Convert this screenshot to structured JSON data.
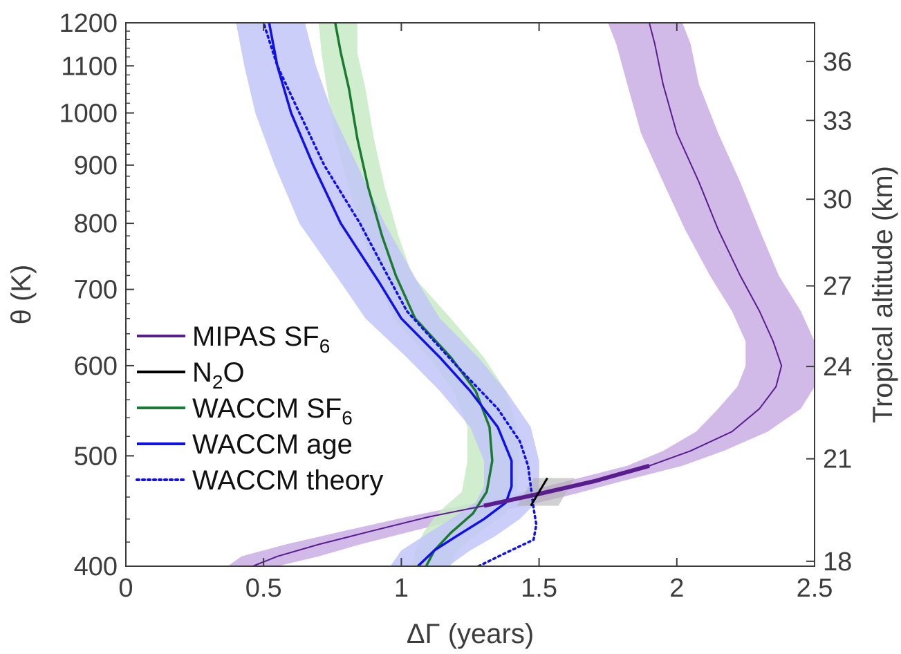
{
  "chart_data": {
    "type": "line",
    "xlabel": "ΔΓ (years)",
    "ylabel_left": "θ (K)",
    "ylabel_right": "Tropical altitude (km)",
    "xlim": [
      0,
      2.5
    ],
    "ylim": [
      400,
      1200
    ],
    "y_scale": "log",
    "x_ticks": [
      "0",
      "0.5",
      "1",
      "1.5",
      "2",
      "2.5"
    ],
    "y_ticks": [
      "400",
      "500",
      "600",
      "700",
      "800",
      "900",
      "1000",
      "1100",
      "1200"
    ],
    "y_ticks_right": [
      "18",
      "21",
      "24",
      "27",
      "30",
      "33",
      "36"
    ],
    "grid": false,
    "legend_position": "lower-left",
    "colors": {
      "mipas": "#5a1d8e",
      "mipas_band": "#c9aee3",
      "n2o": "#000000",
      "n2o_band": "#b0b0b0",
      "waccm_sf6": "#1a7a32",
      "waccm_sf6_band": "#c8ebc4",
      "waccm_age": "#1010e8",
      "waccm_age_band": "#c2c6f7",
      "waccm_theory": "#1010e8",
      "axis": "#3c3c3c"
    },
    "series": [
      {
        "name": "MIPAS SF6",
        "style": "solid",
        "points": [
          [
            0.46,
            400
          ],
          [
            0.55,
            408
          ],
          [
            0.7,
            418
          ],
          [
            0.9,
            430
          ],
          [
            1.1,
            442
          ],
          [
            1.3,
            452
          ],
          [
            1.5,
            463
          ],
          [
            1.7,
            475
          ],
          [
            1.9,
            490
          ],
          [
            2.05,
            505
          ],
          [
            2.2,
            525
          ],
          [
            2.3,
            550
          ],
          [
            2.36,
            575
          ],
          [
            2.38,
            600
          ],
          [
            2.35,
            630
          ],
          [
            2.3,
            670
          ],
          [
            2.23,
            720
          ],
          [
            2.15,
            790
          ],
          [
            2.08,
            870
          ],
          [
            2.0,
            960
          ],
          [
            1.95,
            1060
          ],
          [
            1.92,
            1150
          ],
          [
            1.9,
            1200
          ]
        ],
        "band": [
          [
            0.37,
            0.55
          ],
          [
            0.42,
            0.7
          ],
          [
            0.58,
            0.85
          ],
          [
            0.8,
            1.05
          ],
          [
            1.02,
            1.25
          ],
          [
            1.22,
            1.45
          ],
          [
            1.42,
            1.63
          ],
          [
            1.6,
            1.8
          ],
          [
            1.82,
            2.02
          ],
          [
            1.95,
            2.17
          ],
          [
            2.07,
            2.33
          ],
          [
            2.15,
            2.45
          ],
          [
            2.22,
            2.5
          ],
          [
            2.25,
            2.5
          ],
          [
            2.25,
            2.5
          ],
          [
            2.2,
            2.45
          ],
          [
            2.12,
            2.37
          ],
          [
            2.03,
            2.3
          ],
          [
            1.95,
            2.23
          ],
          [
            1.87,
            2.15
          ],
          [
            1.82,
            2.08
          ],
          [
            1.78,
            2.05
          ],
          [
            1.75,
            2.02
          ]
        ],
        "bold_segment": [
          1.2,
          1.9
        ]
      },
      {
        "name": "N2O",
        "style": "solid",
        "points": [
          [
            1.47,
            452
          ],
          [
            1.53,
            478
          ]
        ],
        "band_points": [
          [
            1.42,
            452
          ],
          [
            1.57,
            452
          ],
          [
            1.63,
            478
          ],
          [
            1.48,
            478
          ]
        ]
      },
      {
        "name": "WACCM SF6",
        "style": "solid",
        "points": [
          [
            1.09,
            400
          ],
          [
            1.12,
            413
          ],
          [
            1.18,
            428
          ],
          [
            1.26,
            445
          ],
          [
            1.31,
            465
          ],
          [
            1.33,
            495
          ],
          [
            1.32,
            530
          ],
          [
            1.27,
            570
          ],
          [
            1.18,
            610
          ],
          [
            1.05,
            660
          ],
          [
            0.98,
            720
          ],
          [
            0.93,
            780
          ],
          [
            0.88,
            860
          ],
          [
            0.84,
            950
          ],
          [
            0.81,
            1050
          ],
          [
            0.78,
            1130
          ],
          [
            0.76,
            1200
          ]
        ],
        "band": [
          [
            1.04,
            1.18
          ],
          [
            1.05,
            1.2
          ],
          [
            1.08,
            1.28
          ],
          [
            1.13,
            1.38
          ],
          [
            1.22,
            1.42
          ],
          [
            1.24,
            1.43
          ],
          [
            1.24,
            1.42
          ],
          [
            1.19,
            1.38
          ],
          [
            1.1,
            1.3
          ],
          [
            0.97,
            1.18
          ],
          [
            0.91,
            1.04
          ],
          [
            0.86,
            0.99
          ],
          [
            0.81,
            0.94
          ],
          [
            0.76,
            0.9
          ],
          [
            0.73,
            0.87
          ],
          [
            0.71,
            0.84
          ],
          [
            0.7,
            0.84
          ]
        ]
      },
      {
        "name": "WACCM age",
        "style": "solid",
        "points": [
          [
            1.06,
            400
          ],
          [
            1.12,
            413
          ],
          [
            1.2,
            425
          ],
          [
            1.3,
            440
          ],
          [
            1.38,
            455
          ],
          [
            1.4,
            470
          ],
          [
            1.4,
            495
          ],
          [
            1.35,
            530
          ],
          [
            1.25,
            570
          ],
          [
            1.14,
            610
          ],
          [
            1.0,
            660
          ],
          [
            0.92,
            710
          ],
          [
            0.78,
            800
          ],
          [
            0.68,
            900
          ],
          [
            0.6,
            1000
          ],
          [
            0.55,
            1100
          ],
          [
            0.52,
            1200
          ]
        ],
        "band": [
          [
            0.96,
            1.17
          ],
          [
            1.0,
            1.25
          ],
          [
            1.08,
            1.34
          ],
          [
            1.18,
            1.43
          ],
          [
            1.27,
            1.49
          ],
          [
            1.3,
            1.5
          ],
          [
            1.3,
            1.5
          ],
          [
            1.25,
            1.47
          ],
          [
            1.14,
            1.38
          ],
          [
            1.02,
            1.28
          ],
          [
            0.87,
            1.14
          ],
          [
            0.78,
            1.06
          ],
          [
            0.63,
            0.94
          ],
          [
            0.54,
            0.84
          ],
          [
            0.47,
            0.75
          ],
          [
            0.43,
            0.69
          ],
          [
            0.4,
            0.65
          ]
        ]
      },
      {
        "name": "WACCM theory",
        "style": "dotted",
        "points": [
          [
            1.28,
            400
          ],
          [
            1.38,
            411
          ],
          [
            1.48,
            422
          ],
          [
            1.49,
            435
          ],
          [
            1.48,
            450
          ],
          [
            1.47,
            470
          ],
          [
            1.46,
            490
          ],
          [
            1.43,
            515
          ],
          [
            1.35,
            550
          ],
          [
            1.2,
            600
          ],
          [
            1.02,
            670
          ],
          [
            0.95,
            720
          ],
          [
            0.85,
            800
          ],
          [
            0.72,
            900
          ],
          [
            0.63,
            1000
          ],
          [
            0.55,
            1100
          ],
          [
            0.5,
            1200
          ]
        ]
      }
    ],
    "legend_labels": [
      {
        "main": "MIPAS SF",
        "sub": "6",
        "tail": ""
      },
      {
        "main": "N",
        "sub": "2",
        "tail": "O"
      },
      {
        "main": "WACCM SF",
        "sub": "6",
        "tail": ""
      },
      {
        "main": "WACCM age",
        "sub": "",
        "tail": ""
      },
      {
        "main": "WACCM theory",
        "sub": "",
        "tail": ""
      }
    ]
  }
}
